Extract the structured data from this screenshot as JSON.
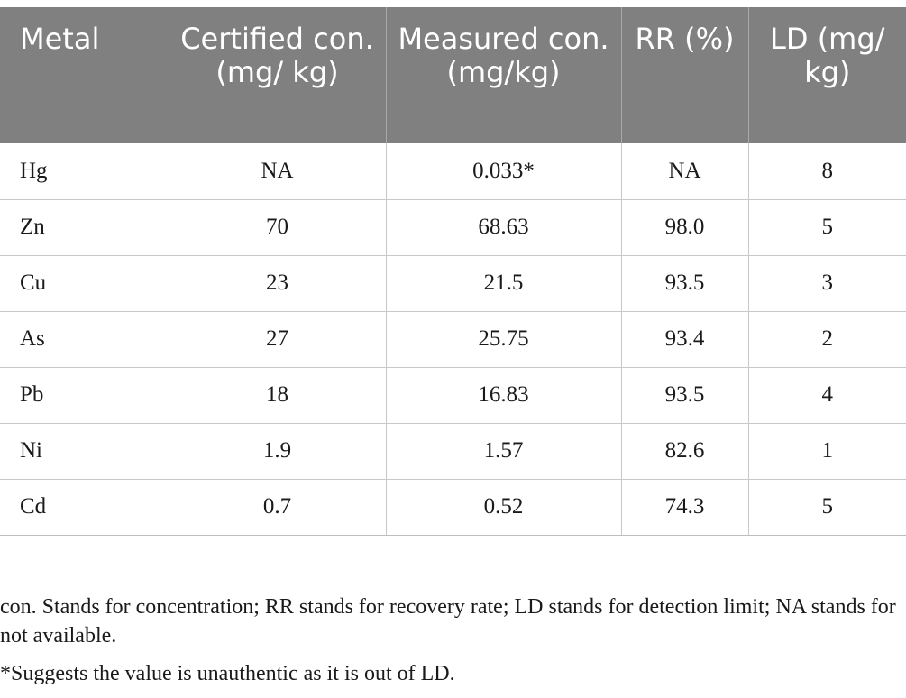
{
  "table": {
    "headers": [
      "Metal",
      "Certified con. (mg/ kg)",
      "Measured con. (mg/kg)",
      "RR (%)",
      "LD (mg/ kg)"
    ],
    "rows": [
      [
        "Hg",
        "NA",
        "0.033*",
        "NA",
        "8"
      ],
      [
        "Zn",
        "70",
        "68.63",
        "98.0",
        "5"
      ],
      [
        "Cu",
        "23",
        "21.5",
        "93.5",
        "3"
      ],
      [
        "As",
        "27",
        "25.75",
        "93.4",
        "2"
      ],
      [
        "Pb",
        "18",
        "16.83",
        "93.5",
        "4"
      ],
      [
        "Ni",
        "1.9",
        "1.57",
        "82.6",
        "1"
      ],
      [
        "Cd",
        "0.7",
        "0.52",
        "74.3",
        "5"
      ]
    ]
  },
  "notes": {
    "abbreviations": "con. Stands for concentration; RR stands for recovery rate; LD stands for detection limit; NA stands for not available.",
    "asterisk": "*Suggests the value is unauthentic as it is out of LD."
  },
  "colors": {
    "header_bg": "#808080",
    "header_text": "#ffffff",
    "grid": "#c8c8c8"
  }
}
